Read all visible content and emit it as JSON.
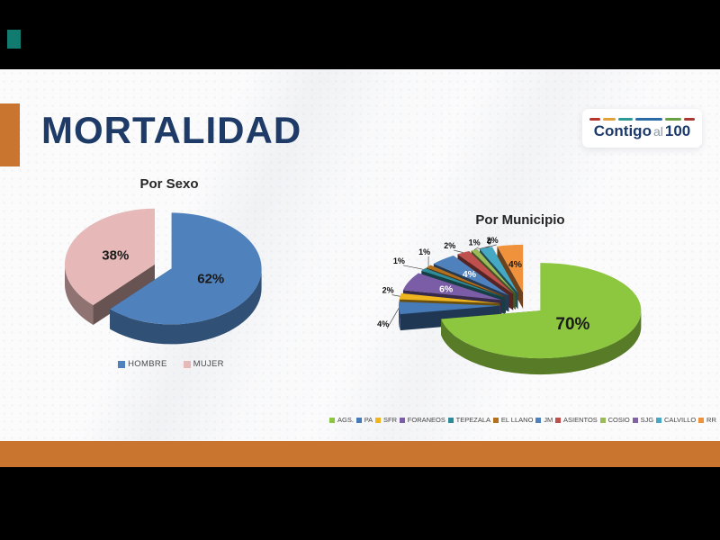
{
  "slide": {
    "title": "MORTALIDAD",
    "title_color": "#1E3A67",
    "accent_color": "#C9752F",
    "corner_marker_color": "#117B6F",
    "logo": {
      "text_bold_1": "Contigo",
      "text_light": "al",
      "text_bold_2": "100",
      "text_color": "#1C3A6B",
      "dash_colors": [
        "#B8352D",
        "#E0A23C",
        "#2E9A94",
        "#2B6BA8",
        "#68A144",
        "#A93832"
      ]
    }
  },
  "chart_data": [
    {
      "type": "pie",
      "style": "3d-exploded",
      "title": "Por Sexo",
      "labels": [
        "HOMBRE",
        "MUJER"
      ],
      "values": [
        62,
        38
      ],
      "percent_labels": [
        "62%",
        "38%"
      ],
      "colors": [
        "#4F81BD",
        "#E6B9B8"
      ],
      "legend_position": "bottom"
    },
    {
      "type": "pie",
      "style": "3d-exploded",
      "title": "Por Municipio",
      "labels": [
        "AGS.",
        "PA",
        "SFR",
        "FORANEOS",
        "TEPEZALA",
        "EL LLANO",
        "JM",
        "ASIENTOS",
        "COSIO",
        "SJG",
        "CALVILLO",
        "RR"
      ],
      "values": [
        70,
        4,
        2,
        6,
        1,
        1,
        4,
        2,
        1,
        0,
        2,
        4
      ],
      "percent_labels": [
        "70%",
        "4%",
        "2%",
        "6%",
        "1%",
        "1%",
        "4%",
        "2%",
        "1%",
        "0",
        "2%",
        "4%"
      ],
      "colors": [
        "#8DC63F",
        "#477BB8",
        "#EFB51F",
        "#7A5DA6",
        "#2E8B9A",
        "#B4701D",
        "#4F81BD",
        "#C0504D",
        "#9BBB59",
        "#8064A2",
        "#45A9C4",
        "#F0913C"
      ],
      "legend_position": "bottom"
    }
  ]
}
